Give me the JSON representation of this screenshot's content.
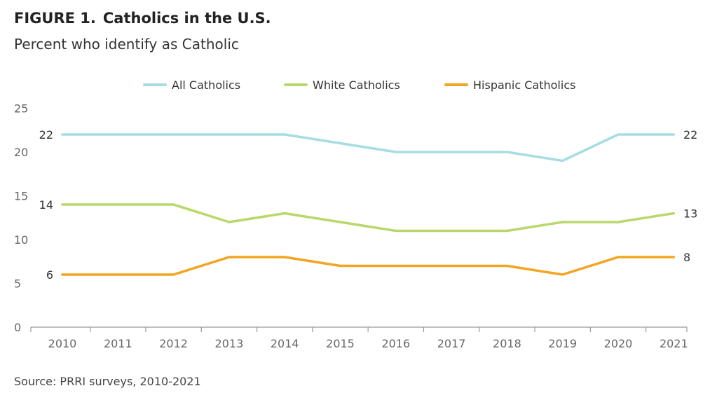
{
  "figure": {
    "number": "FIGURE 1.",
    "title": "Catholics in the U.S.",
    "subtitle": "Percent who identify as Catholic",
    "source": "Source: PRRI surveys, 2010-2021"
  },
  "chart_data": {
    "type": "line",
    "title": "Catholics in the U.S.",
    "subtitle": "Percent who identify as Catholic",
    "xlabel": "",
    "ylabel": "",
    "x": [
      2010,
      2011,
      2012,
      2013,
      2014,
      2015,
      2016,
      2017,
      2018,
      2019,
      2020,
      2021
    ],
    "ylim": [
      0,
      25
    ],
    "yticks": [
      0,
      5,
      10,
      15,
      20,
      25
    ],
    "grid": false,
    "legend_position": "top-center",
    "series": [
      {
        "name": "All Catholics",
        "color": "#a6dde3",
        "values": [
          22,
          22,
          22,
          22,
          22,
          21,
          20,
          20,
          20,
          19,
          22,
          22
        ],
        "start_label": "22",
        "end_label": "22"
      },
      {
        "name": "White Catholics",
        "color": "#b8d86b",
        "values": [
          14,
          14,
          14,
          12,
          13,
          12,
          11,
          11,
          11,
          12,
          12,
          13
        ],
        "start_label": "14",
        "end_label": "13"
      },
      {
        "name": "Hispanic Catholics",
        "color": "#f2a522",
        "values": [
          6,
          6,
          6,
          8,
          8,
          7,
          7,
          7,
          7,
          6,
          8,
          8
        ],
        "start_label": "6",
        "end_label": "8"
      }
    ]
  }
}
